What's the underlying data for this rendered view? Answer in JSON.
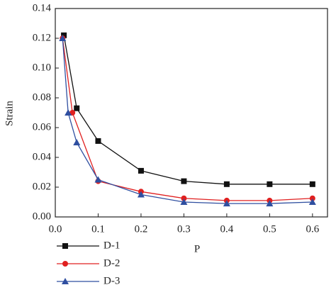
{
  "chart_data": {
    "type": "line",
    "x_label": "P",
    "y_label": "Strain",
    "xlim": [
      0,
      0.635
    ],
    "ylim": [
      0,
      0.14
    ],
    "xticks": [
      {
        "value": 0,
        "label": "0.0"
      },
      0.1,
      0.2,
      0.3,
      0.4,
      0.5,
      0.6
    ],
    "yticks": [
      {
        "value": 0,
        "label": "0.00"
      },
      0.02,
      0.04,
      0.06,
      0.08,
      {
        "value": 0.1,
        "label": "0.10"
      },
      0.12,
      0.14
    ],
    "series": [
      {
        "name": "D-1",
        "color": "#111111",
        "marker": "square",
        "x": [
          0.02,
          0.05,
          0.1,
          0.2,
          0.3,
          0.4,
          0.5,
          0.6
        ],
        "values": [
          0.122,
          0.073,
          0.051,
          0.031,
          0.024,
          0.022,
          0.022,
          0.022
        ]
      },
      {
        "name": "D-2",
        "color": "#e02020",
        "marker": "circle",
        "x": [
          0.017,
          0.04,
          0.1,
          0.2,
          0.3,
          0.4,
          0.5,
          0.6
        ],
        "values": [
          0.12,
          0.07,
          0.024,
          0.017,
          0.0125,
          0.011,
          0.011,
          0.0125
        ]
      },
      {
        "name": "D-3",
        "color": "#2f4fa0",
        "marker": "triangle",
        "x": [
          0.017,
          0.03,
          0.05,
          0.1,
          0.2,
          0.3,
          0.4,
          0.5,
          0.6
        ],
        "values": [
          0.12,
          0.07,
          0.05,
          0.025,
          0.015,
          0.01,
          0.009,
          0.009,
          0.01
        ]
      }
    ]
  }
}
